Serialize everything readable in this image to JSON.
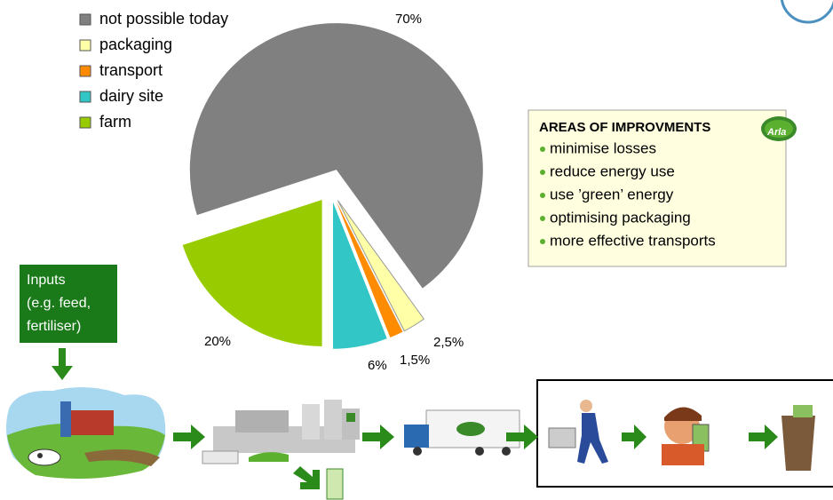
{
  "chart_data": {
    "type": "pie",
    "categories": [
      "not possible today",
      "packaging",
      "transport",
      "dairy site",
      "farm"
    ],
    "values": [
      70,
      2.5,
      1.5,
      6,
      20
    ],
    "value_labels": [
      "70%",
      "2,5%",
      "1,5%",
      "6%",
      "20%"
    ],
    "colors": [
      "#808080",
      "#ffffa8",
      "#ff8c00",
      "#33c6c6",
      "#99cc00"
    ],
    "legend": "top-left"
  },
  "improvements": {
    "title": "AREAS OF IMPROVMENTS",
    "items": [
      "minimise losses",
      "reduce energy use",
      "use ’green’ energy",
      "optimising packaging",
      "more effective transports"
    ]
  },
  "inputs": [
    "Inputs",
    "(e.g. feed,",
    "fertiliser)"
  ]
}
